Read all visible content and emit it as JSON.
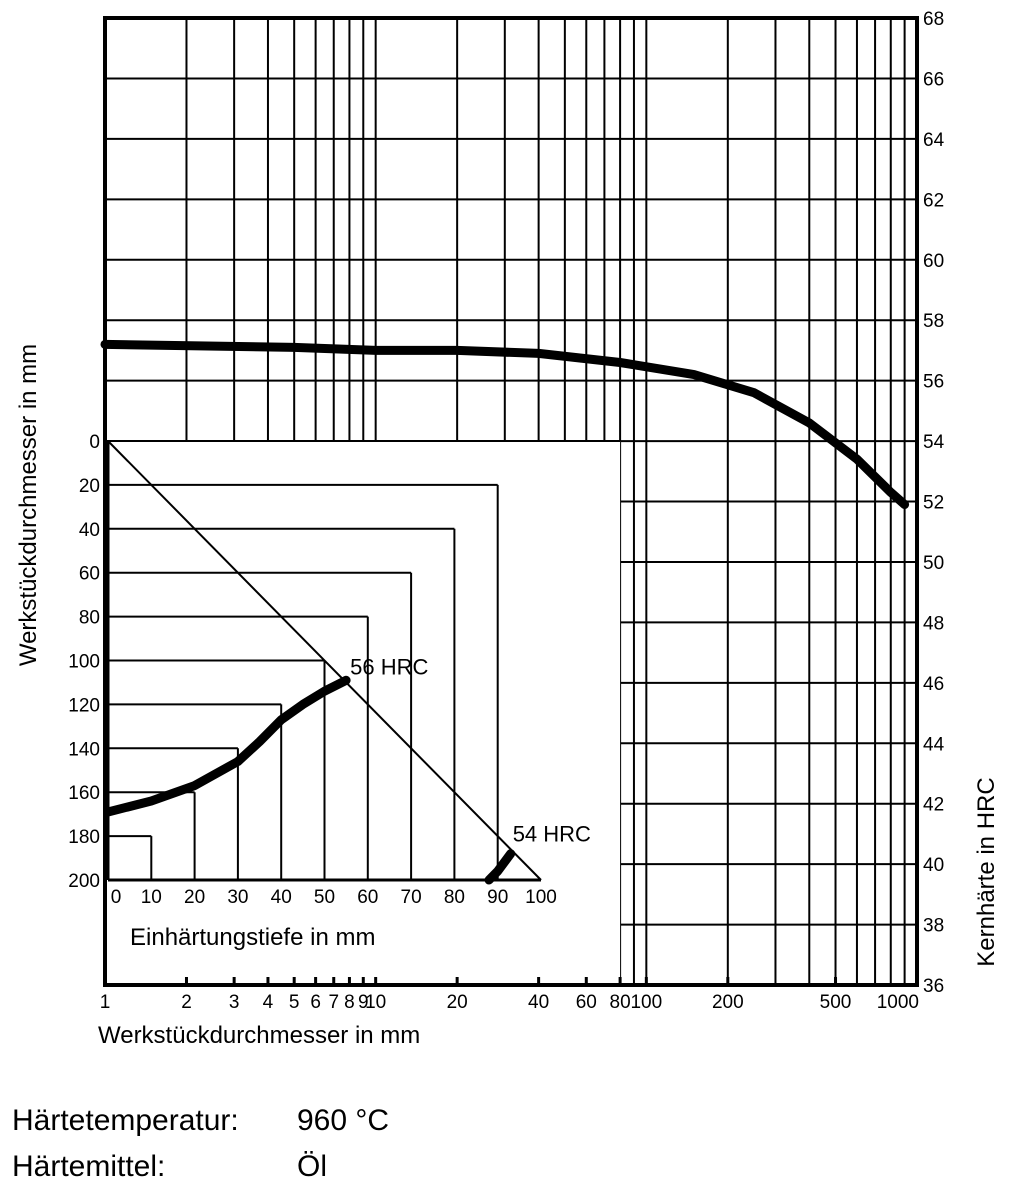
{
  "chart_data": [
    {
      "type": "line",
      "title": "",
      "xlabel": "Werkstückdurchmesser in mm",
      "ylabel": "Kernhärte in HRC",
      "xscale": "log",
      "xlim": [
        1,
        1000
      ],
      "ylim": [
        36,
        68
      ],
      "xticks": [
        1,
        2,
        3,
        4,
        5,
        6,
        7,
        8,
        9,
        10,
        20,
        40,
        60,
        80,
        100,
        200,
        500,
        1000
      ],
      "xtick_labels": [
        "1",
        "2",
        "3",
        "4",
        "5",
        "6",
        "7",
        "8",
        "9",
        "10",
        "20",
        "40",
        "60",
        "80",
        "100",
        "200",
        "500",
        "1000"
      ],
      "yticks": [
        36,
        38,
        40,
        42,
        44,
        46,
        48,
        50,
        52,
        54,
        56,
        58,
        60,
        62,
        64,
        66,
        68
      ],
      "grid": true,
      "series": [
        {
          "name": "Kernhärte",
          "x": [
            1,
            5,
            10,
            20,
            40,
            80,
            150,
            250,
            400,
            600,
            800,
            900
          ],
          "y": [
            57.2,
            57.1,
            57.0,
            57.0,
            56.9,
            56.6,
            56.2,
            55.6,
            54.6,
            53.4,
            52.3,
            51.9
          ]
        }
      ]
    },
    {
      "type": "line",
      "title": "",
      "xlabel": "Einhärtungstiefe in mm",
      "ylabel": "Werkstückdurchmesser in mm",
      "xlim": [
        0,
        100
      ],
      "ylim": [
        0,
        200
      ],
      "y_inverted": true,
      "xticks": [
        0,
        10,
        20,
        30,
        40,
        50,
        60,
        70,
        80,
        90,
        100
      ],
      "yticks": [
        0,
        20,
        40,
        60,
        80,
        100,
        120,
        140,
        160,
        180,
        200
      ],
      "grid": true,
      "series": [
        {
          "name": "56 HRC",
          "label": "56 HRC",
          "x": [
            0,
            10,
            20,
            30,
            35,
            40,
            45,
            50,
            55
          ],
          "y": [
            169,
            164,
            157,
            146,
            137,
            127,
            120,
            114,
            109
          ]
        },
        {
          "name": "54 HRC",
          "label": "54 HRC",
          "x": [
            88,
            90,
            93
          ],
          "y": [
            200,
            196,
            188
          ]
        }
      ]
    }
  ],
  "info": {
    "temperature_label": "Härtetemperatur:",
    "temperature_value": "960 °C",
    "medium_label": "Härtemittel:",
    "medium_value": "Öl"
  }
}
